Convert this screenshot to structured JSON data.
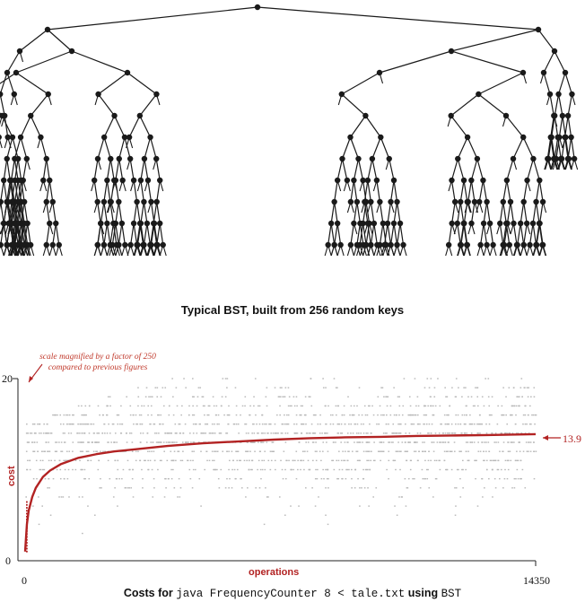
{
  "tree": {
    "caption": "Typical BST, built from 256 random keys"
  },
  "plot": {
    "note_line1": "scale magnified by a factor of 250",
    "note_line2": "compared to previous figures",
    "y_max_label": "20",
    "y_min_label": "0",
    "x_min_label": "0",
    "x_max_label": "14350",
    "ylabel": "cost",
    "xlabel": "operations",
    "final_value_label": "13.9",
    "caption_pre": "Costs for",
    "caption_code1": "java FrequencyCounter 8 < tale.txt",
    "caption_mid": "using",
    "caption_code2": "BST"
  },
  "chart_data": {
    "type": "scatter",
    "x_label": "operations",
    "y_label": "cost",
    "xlim": [
      0,
      14350
    ],
    "ylim": [
      0,
      20
    ],
    "series": [
      {
        "kind": "cumulative average cost",
        "color": "#b22222",
        "x": [
          0,
          50,
          100,
          200,
          300,
          500,
          700,
          1000,
          1500,
          2000,
          2500,
          3000,
          4000,
          5000,
          6000,
          7000,
          8000,
          9000,
          10000,
          11000,
          12000,
          13000,
          14350
        ],
        "y": [
          1,
          4,
          5.5,
          7,
          8,
          9.2,
          9.9,
          10.6,
          11.3,
          11.7,
          12.0,
          12.2,
          12.6,
          12.9,
          13.1,
          13.3,
          13.45,
          13.55,
          13.6,
          13.7,
          13.75,
          13.8,
          13.9
        ]
      }
    ],
    "annotations": [
      "13.9"
    ],
    "grey_points_color": "#b8b8b8",
    "red_points_color": "#b22222"
  },
  "colors": {
    "tree_line": "#1a1a1a",
    "grey_dots": "#b8b8b8",
    "accent_red": "#b22222"
  }
}
